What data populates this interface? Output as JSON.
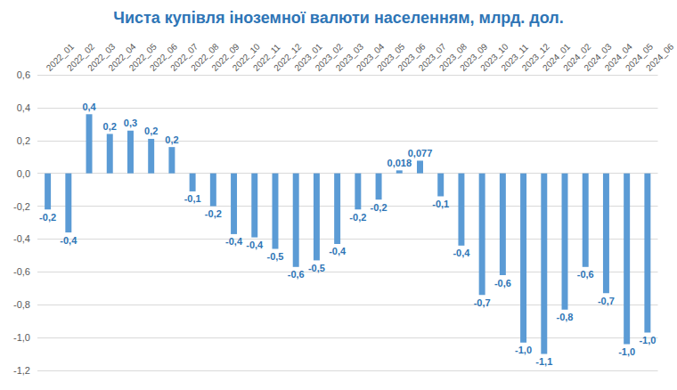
{
  "chart_data": {
    "type": "bar",
    "title": "Чиста купівля іноземної валюти населенням, млрд. дол.",
    "categories": [
      "2022_01",
      "2022_02",
      "2022_03",
      "2022_04",
      "2022_05",
      "2022_06",
      "2022_07",
      "2022_08",
      "2022_09",
      "2022_10",
      "2022_11",
      "2022_12",
      "2023_01",
      "2023_02",
      "2023_03",
      "2023_04",
      "2023_05",
      "2023_06",
      "2023_07",
      "2023_08",
      "2023_09",
      "2023_10",
      "2023_11",
      "2023_12",
      "2024_01",
      "2024_02",
      "2024_03",
      "2024_04",
      "2024_05",
      "2024_06"
    ],
    "values": [
      -0.22,
      -0.36,
      0.36,
      0.24,
      0.26,
      0.21,
      0.16,
      -0.11,
      -0.2,
      -0.37,
      -0.39,
      -0.46,
      -0.57,
      -0.53,
      -0.43,
      -0.22,
      -0.16,
      0.018,
      0.077,
      -0.14,
      -0.44,
      -0.74,
      -0.62,
      -1.03,
      -1.1,
      -0.83,
      -0.57,
      -0.73,
      -1.04,
      -0.97
    ],
    "value_labels": [
      "-0,2",
      "-0,4",
      "0,4",
      "0,2",
      "0,3",
      "0,2",
      "0,2",
      "-0,1",
      "-0,2",
      "-0,4",
      "-0,4",
      "-0,5",
      "-0,6",
      "-0,5",
      "-0,4",
      "-0,2",
      "-0,2",
      "0,018",
      "0,077",
      "-0,1",
      "-0,4",
      "-0,7",
      "-0,6",
      "-1,0",
      "-1,1",
      "-0,8",
      "-0,6",
      "-0,7",
      "-1,0",
      "-1,0"
    ],
    "color": "#5b9bd5",
    "ylim": [
      -1.2,
      0.6
    ],
    "yticks": [
      {
        "value": -1.2,
        "label": "-1,2"
      },
      {
        "value": -1.0,
        "label": "-1,0"
      },
      {
        "value": -0.8,
        "label": "-0,8"
      },
      {
        "value": -0.6,
        "label": "-0,6"
      },
      {
        "value": -0.4,
        "label": "-0,4"
      },
      {
        "value": -0.2,
        "label": "-0,2"
      },
      {
        "value": 0.0,
        "label": "0,0"
      },
      {
        "value": 0.2,
        "label": "0,2"
      },
      {
        "value": 0.4,
        "label": "0,4"
      },
      {
        "value": 0.6,
        "label": "0,6"
      }
    ],
    "grid": true,
    "data_labels": true
  }
}
